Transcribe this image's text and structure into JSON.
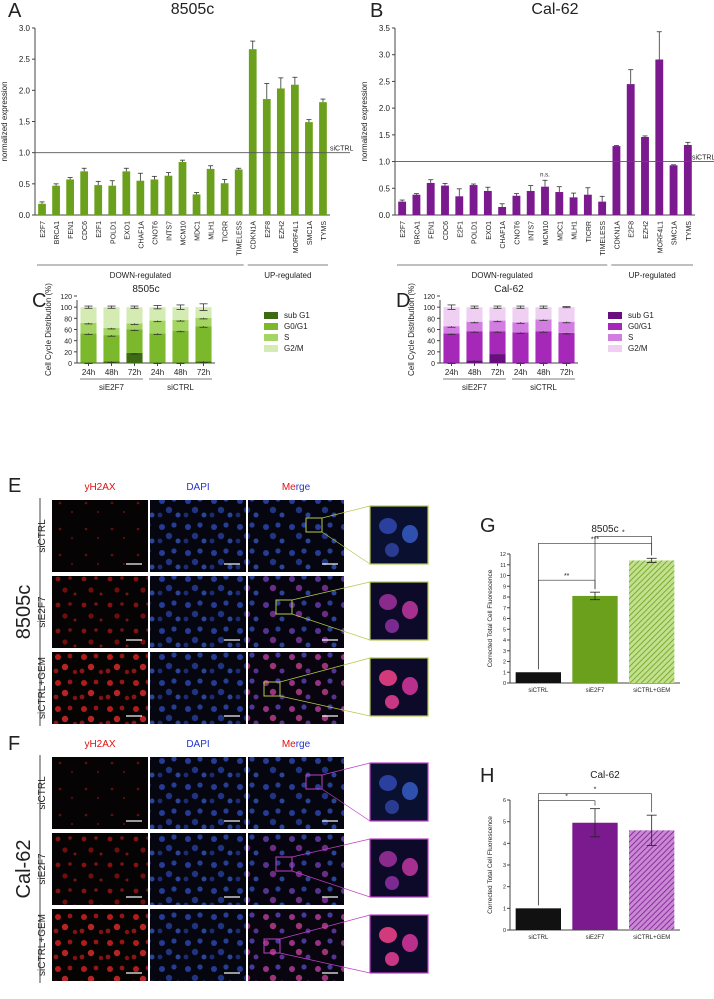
{
  "figure": {
    "panel_letters": [
      "A",
      "B",
      "C",
      "D",
      "E",
      "F",
      "G",
      "H"
    ]
  },
  "colors": {
    "green": "#6aa01c",
    "green_dark": "#3d6b12",
    "green_mid": "#7cb82b",
    "green_light": "#a4d462",
    "green_pale": "#d4ecb3",
    "purple": "#7b1a8e",
    "purple_dark": "#6a0d80",
    "purple_mid": "#a628b8",
    "purple_light": "#d27ee0",
    "purple_pale": "#efd0f3",
    "red_label": "#e01010",
    "blue_label": "#2233cc"
  },
  "chart_data": [
    {
      "id": "A",
      "type": "bar",
      "title": "8505c",
      "ylabel": "normalized expression",
      "ylim": [
        0,
        3.0
      ],
      "yticks": [
        "0.0",
        "0.5",
        "1.0",
        "1.5",
        "2.0",
        "2.5",
        "3.0"
      ],
      "reference_line": {
        "value": 1.0,
        "label": "siCTRL"
      },
      "categories": [
        "E2F7",
        "BRCA1",
        "FEN1",
        "CDC6",
        "E2F1",
        "POLD1",
        "EXO1",
        "CHAF1A",
        "CNOT6",
        "INTS7",
        "MCM10",
        "MDC1",
        "MLH1",
        "TICRR",
        "TIMELESS",
        "CDKN1A",
        "E2F8",
        "EZH2",
        "MORF4L1",
        "SMC1A",
        "TYMS"
      ],
      "values": [
        0.18,
        0.47,
        0.57,
        0.7,
        0.48,
        0.47,
        0.7,
        0.55,
        0.57,
        0.63,
        0.85,
        0.33,
        0.74,
        0.51,
        0.73,
        2.66,
        1.86,
        2.03,
        2.09,
        1.49,
        1.81
      ],
      "errors": [
        0.03,
        0.03,
        0.03,
        0.05,
        0.06,
        0.08,
        0.05,
        0.12,
        0.05,
        0.05,
        0.03,
        0.03,
        0.05,
        0.06,
        0.02,
        0.13,
        0.25,
        0.17,
        0.12,
        0.04,
        0.05
      ],
      "groups": [
        {
          "label": "DOWN-regulated",
          "from": 0,
          "to": 14
        },
        {
          "label": "UP-regulated",
          "from": 15,
          "to": 20
        }
      ]
    },
    {
      "id": "B",
      "type": "bar",
      "title": "Cal-62",
      "ylabel": "normalized expression",
      "ylim": [
        0,
        3.5
      ],
      "yticks": [
        "0.0",
        "0.5",
        "1.0",
        "1.5",
        "2.0",
        "2.5",
        "3.0",
        "3.5"
      ],
      "reference_line": {
        "value": 1.0,
        "label": "siCTRL"
      },
      "annotation": {
        "index": 10,
        "text": "n.s."
      },
      "categories": [
        "E2F7",
        "BRCA1",
        "FEN1",
        "CDC6",
        "E2F1",
        "POLD1",
        "EXO1",
        "CHAF1A",
        "CNOT6",
        "INTS7",
        "MCM10",
        "MDC1",
        "MLH1",
        "TICRR",
        "TIMELESS",
        "CDKN1A",
        "E2F8",
        "EZH2",
        "MORF4L1",
        "SMC1A",
        "TYMS"
      ],
      "values": [
        0.25,
        0.38,
        0.6,
        0.55,
        0.35,
        0.56,
        0.45,
        0.15,
        0.36,
        0.45,
        0.53,
        0.43,
        0.33,
        0.38,
        0.25,
        1.29,
        2.45,
        1.46,
        2.91,
        0.93,
        1.31
      ],
      "errors": [
        0.03,
        0.02,
        0.06,
        0.04,
        0.14,
        0.02,
        0.07,
        0.06,
        0.04,
        0.1,
        0.12,
        0.1,
        0.08,
        0.13,
        0.1,
        0.01,
        0.27,
        0.02,
        0.52,
        0.01,
        0.05
      ],
      "groups": [
        {
          "label": "DOWN-regulated",
          "from": 0,
          "to": 14
        },
        {
          "label": "UP-regulated",
          "from": 15,
          "to": 20
        }
      ]
    },
    {
      "id": "C",
      "type": "stacked_bar",
      "title": "8505c",
      "ylabel": "Cell Cycle Distribution (%)",
      "ylim": [
        0,
        120
      ],
      "yticks": [
        "0",
        "20",
        "40",
        "60",
        "80",
        "100",
        "120"
      ],
      "categories": [
        "24h",
        "48h",
        "72h",
        "24h",
        "48h",
        "72h"
      ],
      "groups": [
        {
          "label": "siE2F7",
          "from": 0,
          "to": 2
        },
        {
          "label": "siCTRL",
          "from": 3,
          "to": 5
        }
      ],
      "series": [
        {
          "name": "sub G1",
          "values": [
            1,
            3,
            18,
            1,
            1,
            3
          ]
        },
        {
          "name": "G0/G1",
          "values": [
            52,
            47,
            42,
            52,
            57,
            63
          ]
        },
        {
          "name": "S",
          "values": [
            19,
            13,
            11,
            23,
            19,
            15
          ]
        },
        {
          "name": "G2/M",
          "values": [
            28,
            37,
            29,
            24,
            23,
            19
          ]
        }
      ],
      "top_error": [
        2,
        2,
        2,
        3,
        4,
        6
      ]
    },
    {
      "id": "D",
      "type": "stacked_bar",
      "title": "Cal-62",
      "ylabel": "Cell Cycle Distribution (%)",
      "ylim": [
        0,
        120
      ],
      "yticks": [
        "0",
        "20",
        "40",
        "60",
        "80",
        "100",
        "120"
      ],
      "categories": [
        "24h",
        "48h",
        "72h",
        "24h",
        "48h",
        "72h"
      ],
      "groups": [
        {
          "label": "siE2F7",
          "from": 0,
          "to": 2
        },
        {
          "label": "siCTRL",
          "from": 3,
          "to": 5
        }
      ],
      "series": [
        {
          "name": "sub G1",
          "values": [
            1,
            5,
            16,
            1,
            1,
            1
          ]
        },
        {
          "name": "G0/G1",
          "values": [
            52,
            52,
            41,
            54,
            56,
            53
          ]
        },
        {
          "name": "S",
          "values": [
            13,
            17,
            19,
            18,
            21,
            20
          ]
        },
        {
          "name": "G2/M",
          "values": [
            34,
            26,
            24,
            27,
            22,
            26
          ]
        }
      ],
      "top_error": [
        4,
        2,
        2,
        2,
        2,
        1
      ]
    },
    {
      "id": "G",
      "type": "bar",
      "title": "8505c",
      "ylabel": "Corrected Total Cell Fluorescence",
      "ylim": [
        0,
        12
      ],
      "yticks": [
        "0",
        "1",
        "2",
        "3",
        "4",
        "5",
        "6",
        "7",
        "8",
        "9",
        "10",
        "11",
        "12"
      ],
      "categories": [
        "siCTRL",
        "siE2F7",
        "siCTRL+GEM"
      ],
      "values": [
        1.0,
        8.1,
        11.4
      ],
      "errors": [
        0,
        0.35,
        0.2
      ],
      "significance": [
        {
          "from": 0,
          "to": 1,
          "label": "**"
        },
        {
          "from": 0,
          "to": 2,
          "label": "***"
        },
        {
          "from": 1,
          "to": 2,
          "label": "*"
        }
      ]
    },
    {
      "id": "H",
      "type": "bar",
      "title": "Cal-62",
      "ylabel": "Corrected Total Cell Fluorescence",
      "ylim": [
        0,
        6
      ],
      "yticks": [
        "0",
        "1",
        "2",
        "3",
        "4",
        "5",
        "6"
      ],
      "categories": [
        "siCTRL",
        "siE2F7",
        "siCTRL+GEM"
      ],
      "values": [
        1.0,
        4.95,
        4.6
      ],
      "errors": [
        0,
        0.65,
        0.7
      ],
      "significance": [
        {
          "from": 0,
          "to": 1,
          "label": "*"
        },
        {
          "from": 0,
          "to": 2,
          "label": "*"
        }
      ]
    }
  ],
  "microscopy": {
    "E": {
      "cell_line": "8505c",
      "columns": [
        "yH2AX",
        "DAPI",
        "Merge"
      ],
      "merge_parts": [
        "Me",
        "rge"
      ],
      "rows": [
        "siCTRL",
        "siE2F7",
        "siCTRL+GEM"
      ]
    },
    "F": {
      "cell_line": "Cal-62",
      "columns": [
        "yH2AX",
        "DAPI",
        "Merge"
      ],
      "merge_parts": [
        "Me",
        "rge"
      ],
      "rows": [
        "siCTRL",
        "siE2F7",
        "siCTRL+GEM"
      ]
    }
  }
}
